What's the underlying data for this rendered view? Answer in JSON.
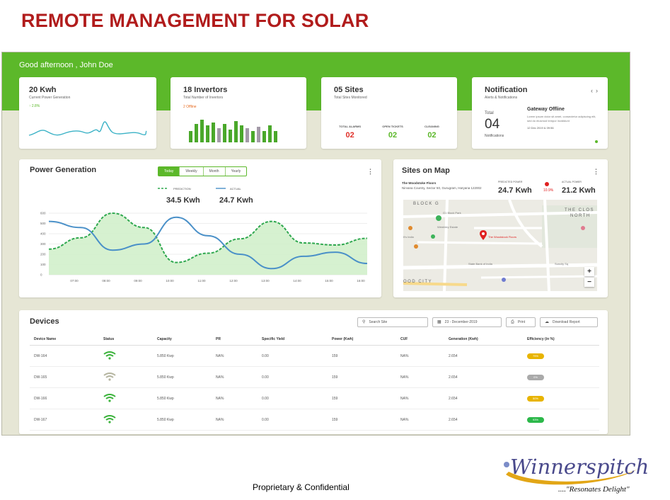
{
  "slide": {
    "title": "REMOTE MANAGEMENT FOR SOLAR",
    "footer": "Proprietary & Confidential"
  },
  "logo": {
    "wordmark": "Winnerspitch",
    "tagline": "....\"Resonates Delight\""
  },
  "header": {
    "greeting": "Good afternoon , John Doe"
  },
  "stat_cards": {
    "generation": {
      "value": "20 Kwh",
      "label": "Current Power Generation",
      "trend": "↑ 2.8%"
    },
    "invertors": {
      "value": "18 Invertors",
      "label": "Total Number of Invertors",
      "status": "2 Offline"
    },
    "sites": {
      "value": "05 Sites",
      "label": "Total Sites Monitored",
      "stats": [
        {
          "label": "TOTAL ALARMS",
          "value": "02",
          "color": "#e0322b"
        },
        {
          "label": "OPEN TICKETS",
          "value": "02",
          "color": "#5cb82a"
        },
        {
          "label": "CLEANING",
          "value": "02",
          "color": "#5cb82a"
        }
      ]
    },
    "notification": {
      "title": "Notification",
      "subtitle": "Alerts & Notifications",
      "total_label": "Total",
      "count": "04",
      "count_label": "Notifications",
      "alert_title": "Gateway Offline",
      "alert_message": "Lorem ipsum dolor sit amet, consectetur adipiscing elit, sed do eiusmod tempor incididunt",
      "alert_date": "12 Dec 2019 & 09:56"
    }
  },
  "power_generation": {
    "title": "Power Generation",
    "tabs": [
      "Today",
      "Weekly",
      "Month",
      "Yearly"
    ],
    "selected_tab": "Today",
    "legend": [
      {
        "name": "PREDICTION",
        "value": "34.5 Kwh",
        "style": "dashed",
        "color": "#2fa84f"
      },
      {
        "name": "ACTUAL",
        "value": "24.7 Kwh",
        "style": "solid",
        "color": "#4a90c8"
      }
    ]
  },
  "chart_data": {
    "type": "line",
    "x": [
      "07:00",
      "08:00",
      "09:00",
      "10:00",
      "11:00",
      "12:00",
      "13:00",
      "14:00",
      "15:00",
      "16:00",
      "17:00"
    ],
    "yticks": [
      0,
      100,
      200,
      300,
      400,
      500,
      600
    ],
    "ylim": [
      0,
      600
    ],
    "series": [
      {
        "name": "PREDICTION",
        "type": "area",
        "values": [
          250,
          360,
          600,
          460,
          120,
          210,
          350,
          520,
          310,
          290,
          355
        ]
      },
      {
        "name": "ACTUAL",
        "type": "line",
        "values": [
          520,
          460,
          240,
          300,
          560,
          380,
          200,
          60,
          180,
          220,
          110
        ]
      }
    ]
  },
  "sites_map": {
    "title": "Sites on Map",
    "place": "The Woodstoke Floors",
    "address": "Nirvana Country, Sector 50, Gurugram, Haryana 122002",
    "predicted_label": "PREDICTED POWER",
    "predicted_value": "24.7 Kwh",
    "delta": "10.9%",
    "actual_label": "ACTUAL POWER",
    "actual_value": "21.2 Kwh",
    "map_labels": {
      "block": "BLOCK G",
      "close": "THE CLOS",
      "north": "NORTH",
      "city": "OOD CITY",
      "poi1": "G1 Block Park",
      "poi2": "Wembley Estate",
      "poi3": "The Woodstock Floors",
      "poi4": "State Bank of India",
      "poi5": "Suncity Sq",
      "poi6": "It's India"
    },
    "zoom_in": "+",
    "zoom_out": "−"
  },
  "devices": {
    "title": "Devices",
    "search_placeholder": "Search Site",
    "date": "23 - December-2019",
    "print_label": "Print",
    "download_label": "Download Report",
    "columns": [
      "Device Name",
      "Status",
      "Capacity",
      "PR",
      "Specific Yield",
      "Power (Kwh)",
      "CUF",
      "Generation (Kwh)",
      "Efficiency (in %)"
    ],
    "rows": [
      {
        "name": "DW-164",
        "status": "online",
        "capacity": "5.850 Kwp",
        "pr": "NA%",
        "yield": "0.00",
        "power": "159",
        "cuf": "NA%",
        "generation": "2.654",
        "efficiency": "75%",
        "color": "#e8b400"
      },
      {
        "name": "DW-165",
        "status": "offline",
        "capacity": "5.850 Kwp",
        "pr": "NA%",
        "yield": "0.00",
        "power": "159",
        "cuf": "NA%",
        "generation": "2.654",
        "efficiency": "0%",
        "color": "#aaaaaa"
      },
      {
        "name": "DW-166",
        "status": "online",
        "capacity": "5.850 Kwp",
        "pr": "NA%",
        "yield": "0.00",
        "power": "159",
        "cuf": "NA%",
        "generation": "2.654",
        "efficiency": "50%",
        "color": "#e8b400"
      },
      {
        "name": "DW-167",
        "status": "online",
        "capacity": "5.850 Kwp",
        "pr": "NA%",
        "yield": "0.00",
        "power": "159",
        "cuf": "NA%",
        "generation": "2.654",
        "efficiency": "93%",
        "color": "#2cb84a"
      }
    ]
  },
  "colors": {
    "brand_green": "#5cb82a",
    "title_red": "#b11c1c",
    "panel_bg": "#e6e6d5"
  }
}
